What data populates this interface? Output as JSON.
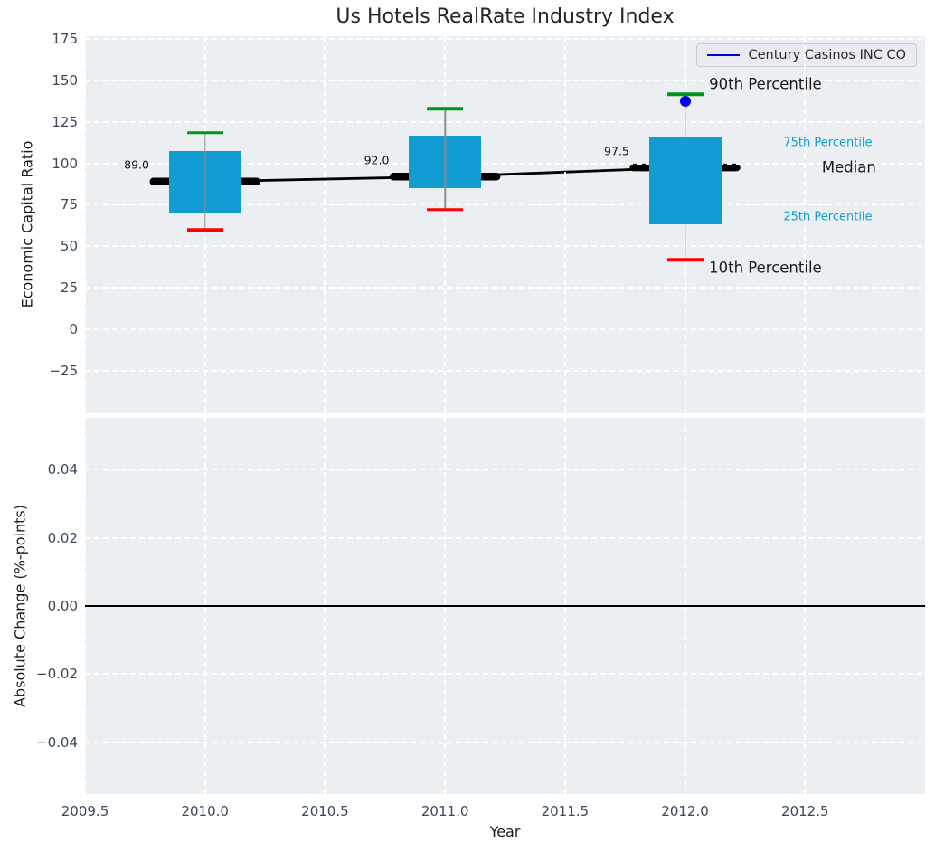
{
  "title": "Us Hotels RealRate Industry Index",
  "chart_data": {
    "type": "boxplot",
    "title": "Us Hotels RealRate Industry Index",
    "xlabel": "Year",
    "series_label": "Century Casinos INC CO",
    "xlim": [
      2009.5,
      2013.0
    ],
    "x_ticks": [
      {
        "v": 2009.5,
        "label": "2009.5"
      },
      {
        "v": 2010.0,
        "label": "2010.0"
      },
      {
        "v": 2010.5,
        "label": "2010.5"
      },
      {
        "v": 2011.0,
        "label": "2011.0"
      },
      {
        "v": 2011.5,
        "label": "2011.5"
      },
      {
        "v": 2012.0,
        "label": "2012.0"
      },
      {
        "v": 2012.5,
        "label": "2012.5"
      }
    ],
    "top": {
      "ylabel": "Economic Capital Ratio",
      "ylim": [
        -50.6,
        176.6
      ],
      "y_ticks": [
        {
          "v": 175,
          "label": "175"
        },
        {
          "v": 150,
          "label": "150"
        },
        {
          "v": 125,
          "label": "125"
        },
        {
          "v": 100,
          "label": "100"
        },
        {
          "v": 75,
          "label": "75"
        },
        {
          "v": 50,
          "label": "50"
        },
        {
          "v": 25,
          "label": "25"
        },
        {
          "v": 0,
          "label": "0"
        },
        {
          "v": -25,
          "label": "−25"
        }
      ]
    },
    "boxes": [
      {
        "year": 2010,
        "p10": 60,
        "p25": 70.5,
        "median": 89.0,
        "p75": 107.5,
        "p90": 118.5,
        "label": "89.0"
      },
      {
        "year": 2011,
        "p10": 72,
        "p25": 85,
        "median": 92.0,
        "p75": 116.5,
        "p90": 133,
        "label": "92.0"
      },
      {
        "year": 2012,
        "p10": 42,
        "p25": 63,
        "median": 97.5,
        "p75": 115.5,
        "p90": 141.5,
        "label": "97.5"
      }
    ],
    "median_trend": [
      [
        2010,
        89.0
      ],
      [
        2011,
        92.0
      ],
      [
        2012,
        97.5
      ]
    ],
    "company_points": [
      {
        "year": 2012,
        "value": 137.5
      }
    ],
    "percentile_annotations": [
      {
        "text": "90th Percentile",
        "year": 2012.1,
        "value": 147.5,
        "style": "large"
      },
      {
        "text": "75th Percentile",
        "year": 2012.41,
        "value": 112.5,
        "style": "small"
      },
      {
        "text": "Median",
        "year": 2012.57,
        "value": 97.5,
        "style": "large"
      },
      {
        "text": "25th Percentile",
        "year": 2012.41,
        "value": 67.5,
        "style": "small"
      },
      {
        "text": "10th Percentile",
        "year": 2012.1,
        "value": 37.0,
        "style": "large"
      }
    ],
    "bottom": {
      "ylabel": "Absolute Change (%-points)",
      "ylim": [
        -0.0551,
        0.0551
      ],
      "y_ticks": [
        {
          "v": 0.04,
          "label": "0.04"
        },
        {
          "v": 0.02,
          "label": "0.02"
        },
        {
          "v": 0.0,
          "label": "0.00"
        },
        {
          "v": -0.02,
          "label": "−0.02"
        },
        {
          "v": -0.04,
          "label": "−0.04"
        }
      ],
      "zero_line": 0.0,
      "series": []
    },
    "legend_position": "upper right",
    "grid": "white dashed on light gray",
    "colors": {
      "box_fill": "#119dd3",
      "cap_high": "#00961b",
      "cap_low": "#ff0000",
      "whisker": "#8c8c8c",
      "median_line": "#000000",
      "company_point": "#0000eb",
      "legend_line": "#0000e0",
      "zero_line": "#000000",
      "plot_bg": "#ebeff1",
      "grid": "#ffffff",
      "tick_text": "#3b4859",
      "cyan_text": "#119dd3"
    }
  }
}
